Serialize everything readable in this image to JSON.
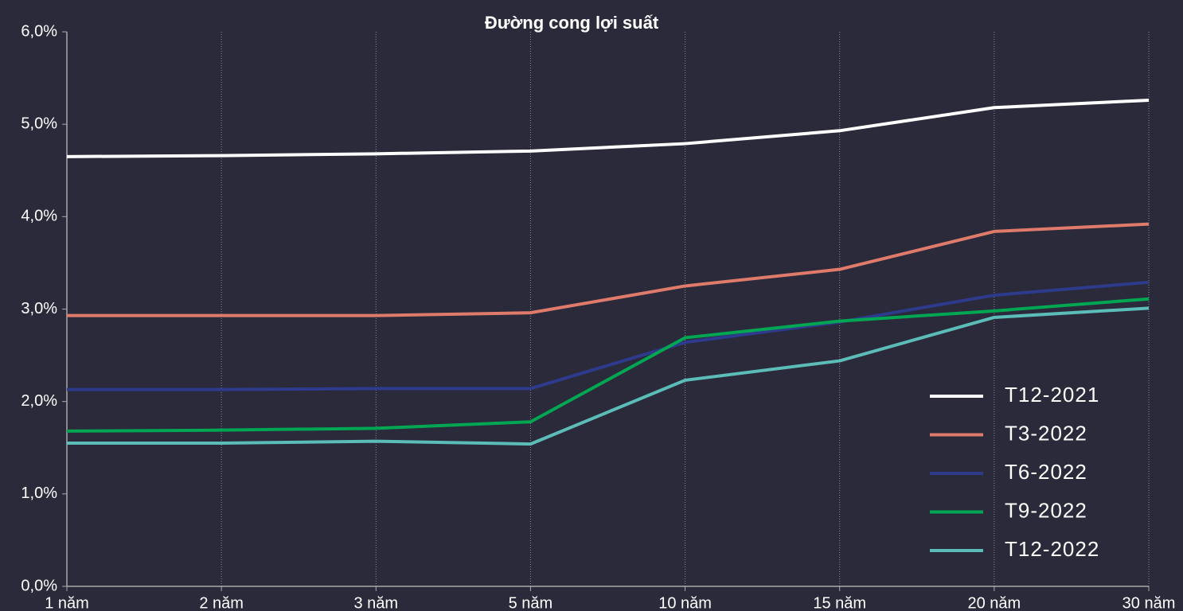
{
  "chart_data": {
    "type": "line",
    "title": "Đường cong lợi suất",
    "categories": [
      "1 năm",
      "2 năm",
      "3 năm",
      "5 năm",
      "10 năm",
      "15 năm",
      "20 năm",
      "30 năm"
    ],
    "series": [
      {
        "name": "T12-2021",
        "color": "#ffffff",
        "values": [
          4.65,
          4.66,
          4.68,
          4.71,
          4.79,
          4.93,
          5.18,
          5.26
        ]
      },
      {
        "name": "T3-2022",
        "color": "#e07a6b",
        "values": [
          2.93,
          2.93,
          2.93,
          2.96,
          3.25,
          3.43,
          3.84,
          3.92
        ]
      },
      {
        "name": "T6-2022",
        "color": "#2e3a8c",
        "values": [
          2.13,
          2.13,
          2.14,
          2.14,
          2.64,
          2.86,
          3.15,
          3.29
        ]
      },
      {
        "name": "T9-2022",
        "color": "#00a651",
        "values": [
          1.68,
          1.69,
          1.71,
          1.78,
          2.69,
          2.87,
          2.98,
          3.11
        ]
      },
      {
        "name": "T12-2022",
        "color": "#5bbcb8",
        "values": [
          1.55,
          1.55,
          1.57,
          1.54,
          2.23,
          2.44,
          2.91,
          3.01
        ]
      }
    ],
    "ylim": [
      0,
      6
    ],
    "yticks": [
      {
        "value": 0,
        "label": "0,0%"
      },
      {
        "value": 1,
        "label": "1,0%"
      },
      {
        "value": 2,
        "label": "2,0%"
      },
      {
        "value": 3,
        "label": "3,0%"
      },
      {
        "value": 4,
        "label": "4,0%"
      },
      {
        "value": 5,
        "label": "5,0%"
      },
      {
        "value": 6,
        "label": "6,0%"
      }
    ],
    "grid": true,
    "legend": "lower right"
  }
}
